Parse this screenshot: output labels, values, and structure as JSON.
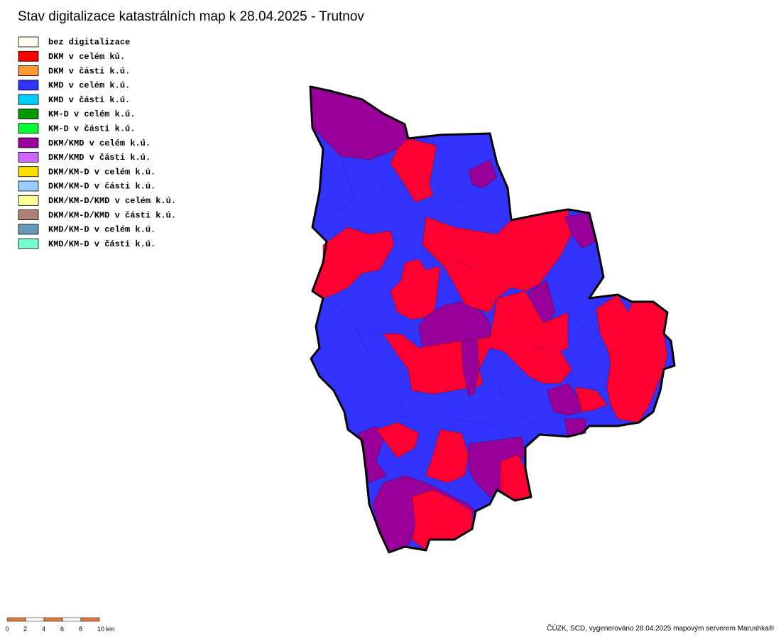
{
  "header": {
    "title": "Stav digitalizace katastrálních map k 28.04.2025 - Trutnov"
  },
  "legend": {
    "items": [
      {
        "label": "bez digitalizace",
        "color": "#ffffee"
      },
      {
        "label": "DKM v celém kú.",
        "color": "#ff0000"
      },
      {
        "label": "DKM v části k.ú.",
        "color": "#ff9933"
      },
      {
        "label": "KMD v celém k.ú.",
        "color": "#3333ff"
      },
      {
        "label": "KMD v části k.ú.",
        "color": "#00ccff"
      },
      {
        "label": "KM-D v celém k.ú.",
        "color": "#009900"
      },
      {
        "label": "KM-D v části k.ú.",
        "color": "#00ff33"
      },
      {
        "label": "DKM/KMD v celém k.ú.",
        "color": "#990099"
      },
      {
        "label": "DKM/KMD v části k.ú.",
        "color": "#cc66ff"
      },
      {
        "label": "DKM/KM-D v celém k.ú.",
        "color": "#ffdd00"
      },
      {
        "label": "DKM/KM-D v části k.ú.",
        "color": "#99ccff"
      },
      {
        "label": "DKM/KM-D/KMD v celém k.ú.",
        "color": "#ffff99"
      },
      {
        "label": "DKM/KM-D/KMD v části k.ú.",
        "color": "#b07f77"
      },
      {
        "label": "KMD/KM-D v celém k.ú.",
        "color": "#6699bb"
      },
      {
        "label": "KMD/KM-D v části k.ú.",
        "color": "#77ffcc"
      }
    ]
  },
  "scale_bar": {
    "labels": [
      "0",
      "2",
      "4",
      "6",
      "8",
      "10 km"
    ]
  },
  "footer": {
    "credit": "ČÚZK, SCD, vygenerováno 28.04.2025 mapovým serverem Marushka®"
  }
}
